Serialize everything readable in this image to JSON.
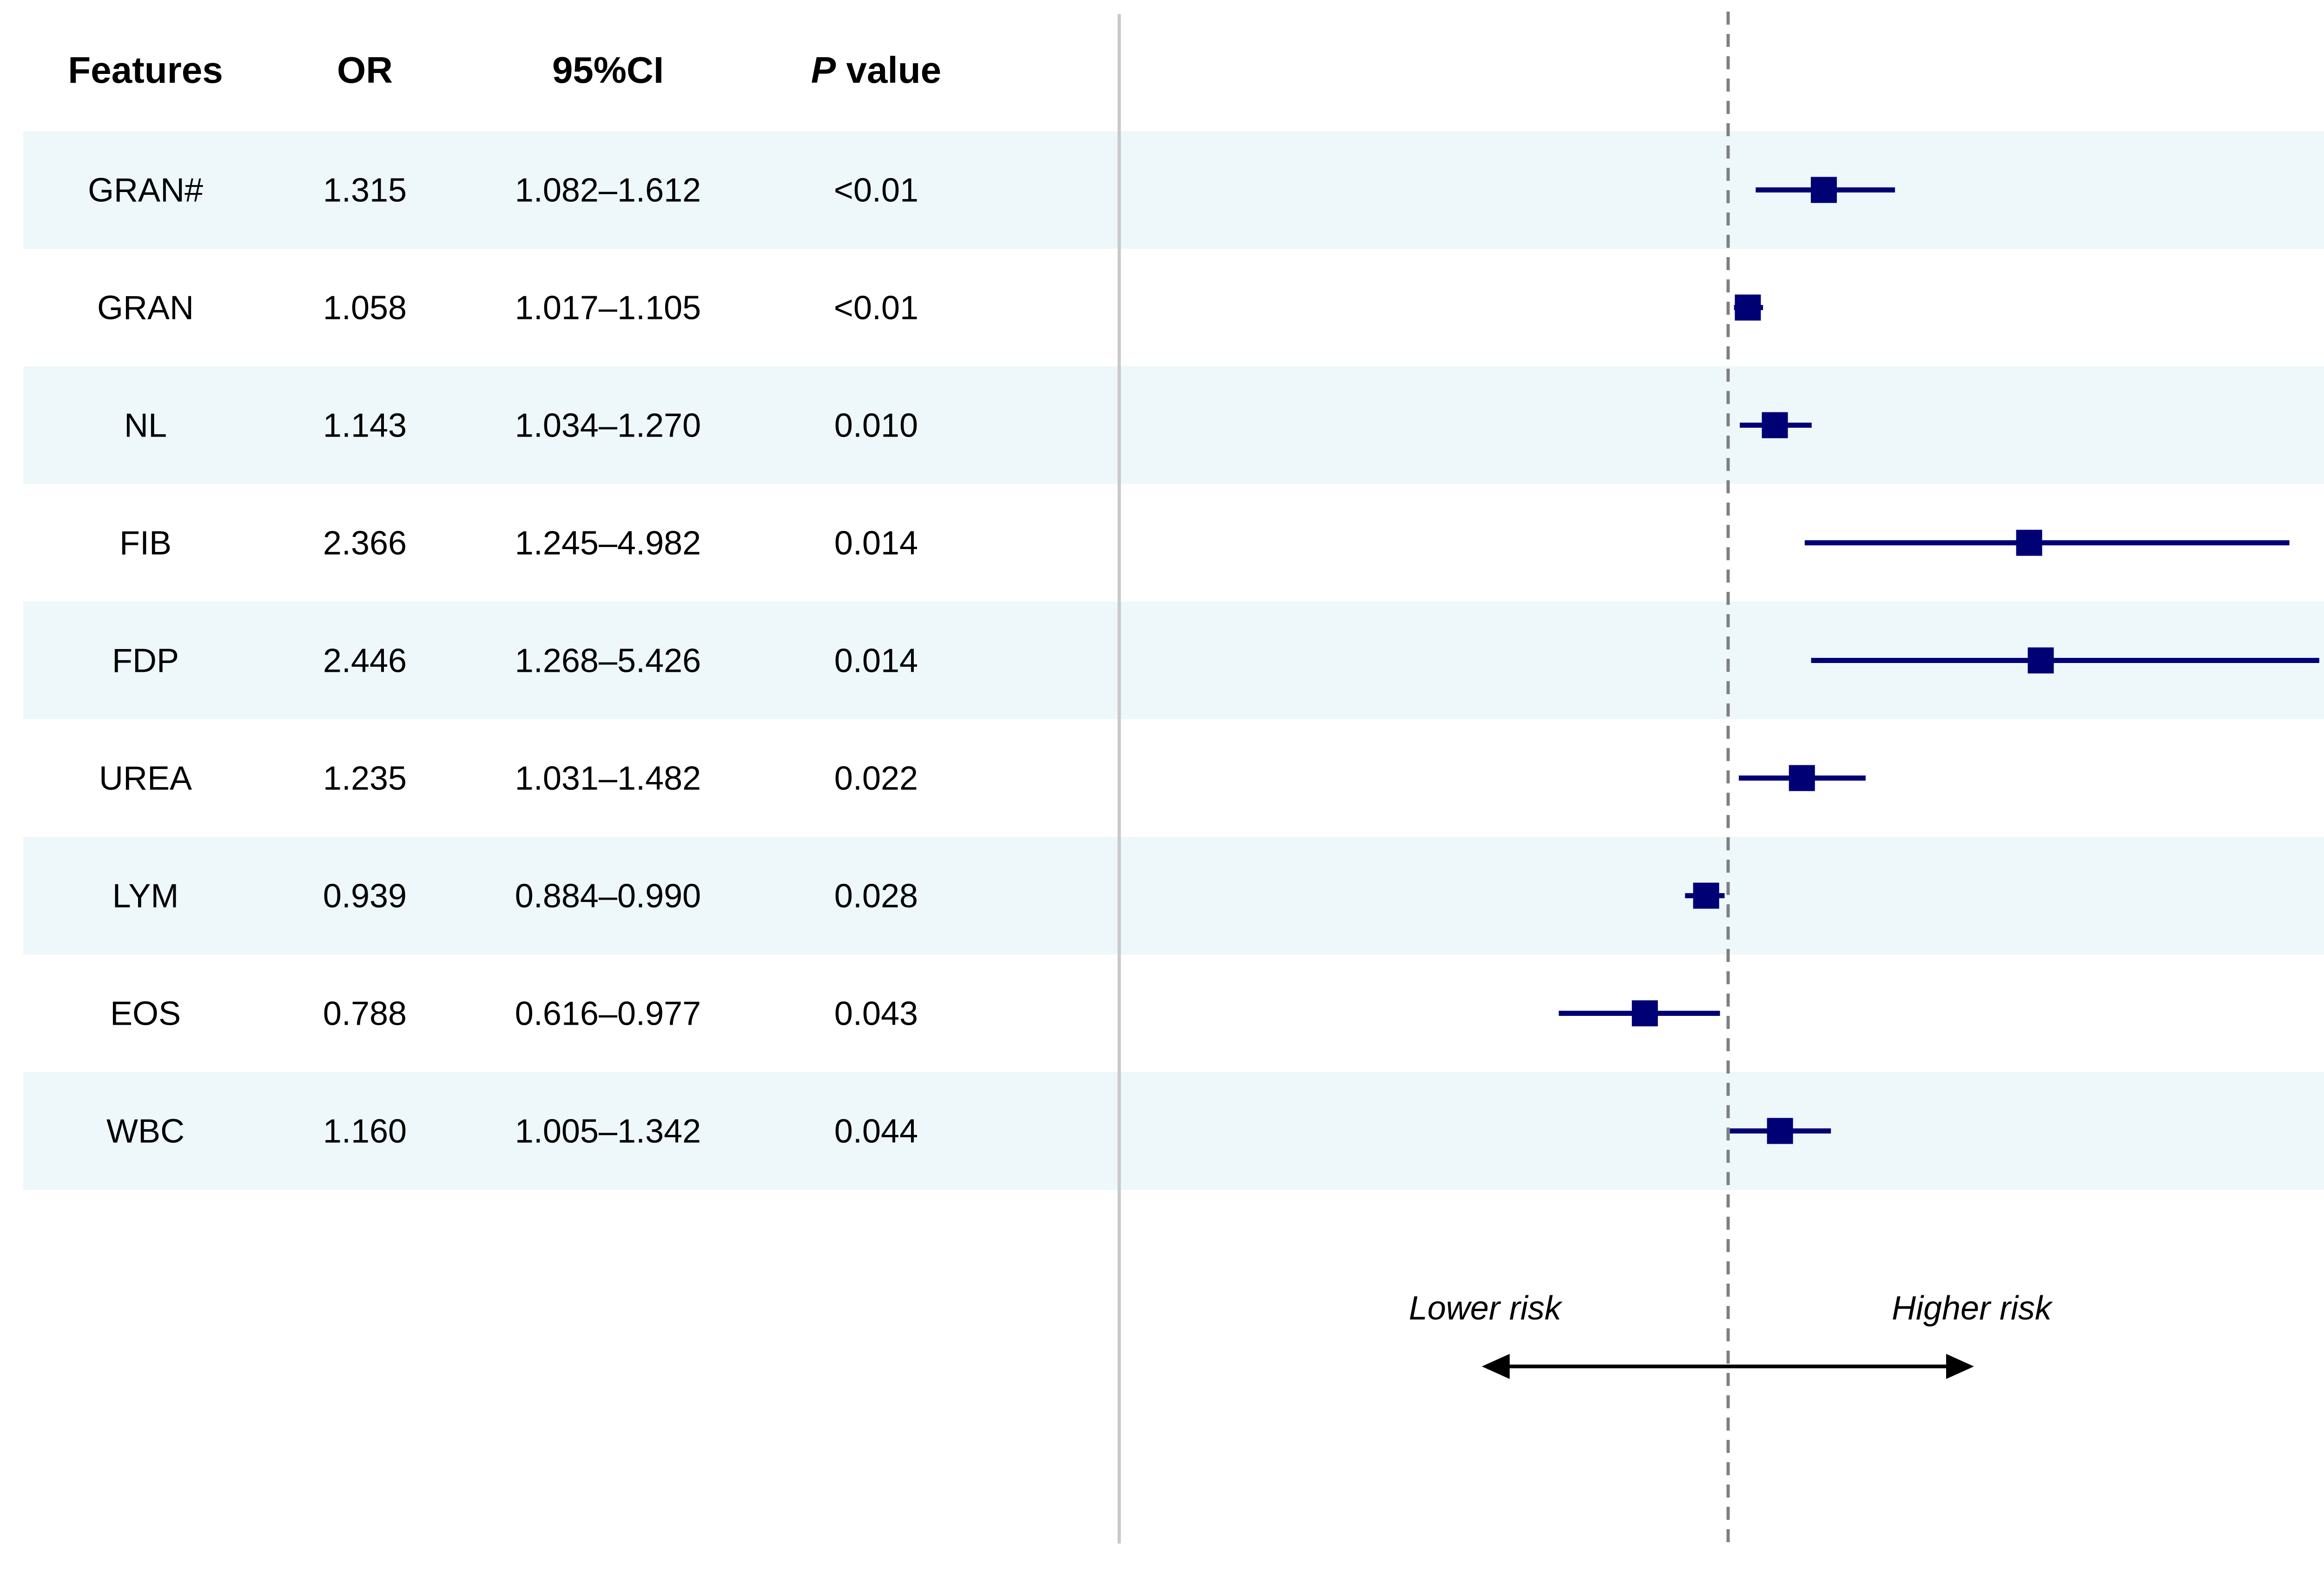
{
  "chart_data": {
    "type": "forest",
    "columns": {
      "features": "Features",
      "or": "OR",
      "ci": "95%CI",
      "p_italic": "P",
      "p_rest": " value"
    },
    "rows": [
      {
        "feature": "GRAN#",
        "or": 1.315,
        "or_label": "1.315",
        "ci_low": 1.082,
        "ci_high": 1.612,
        "ci_label": "1.082–1.612",
        "p_label": "<0.01"
      },
      {
        "feature": "GRAN",
        "or": 1.058,
        "or_label": "1.058",
        "ci_low": 1.017,
        "ci_high": 1.105,
        "ci_label": "1.017–1.105",
        "p_label": "<0.01"
      },
      {
        "feature": "NL",
        "or": 1.143,
        "or_label": "1.143",
        "ci_low": 1.034,
        "ci_high": 1.27,
        "ci_label": "1.034–1.270",
        "p_label": "0.010"
      },
      {
        "feature": "FIB",
        "or": 2.366,
        "or_label": "2.366",
        "ci_low": 1.245,
        "ci_high": 4.982,
        "ci_label": "1.245–4.982",
        "p_label": "0.014"
      },
      {
        "feature": "FDP",
        "or": 2.446,
        "or_label": "2.446",
        "ci_low": 1.268,
        "ci_high": 5.426,
        "ci_label": "1.268–5.426",
        "p_label": "0.014"
      },
      {
        "feature": "UREA",
        "or": 1.235,
        "or_label": "1.235",
        "ci_low": 1.031,
        "ci_high": 1.482,
        "ci_label": "1.031–1.482",
        "p_label": "0.022"
      },
      {
        "feature": "LYM",
        "or": 0.939,
        "or_label": "0.939",
        "ci_low": 0.884,
        "ci_high": 0.99,
        "ci_label": "0.884–0.990",
        "p_label": "0.028"
      },
      {
        "feature": "EOS",
        "or": 0.788,
        "or_label": "0.788",
        "ci_low": 0.616,
        "ci_high": 0.977,
        "ci_label": "0.616–0.977",
        "p_label": "0.043"
      },
      {
        "feature": "WBC",
        "or": 1.16,
        "or_label": "1.160",
        "ci_low": 1.005,
        "ci_high": 1.342,
        "ci_label": "1.005–1.342",
        "p_label": "0.044"
      }
    ],
    "reference_value": 1,
    "x_scale": "log",
    "lower_label": "Lower risk",
    "higher_label": "Higher risk",
    "colors": {
      "marker": "#000075",
      "stripe": "#eef7fa",
      "reference_line": "#808080",
      "divider": "#c8c8c8",
      "arrow": "#000000"
    }
  }
}
